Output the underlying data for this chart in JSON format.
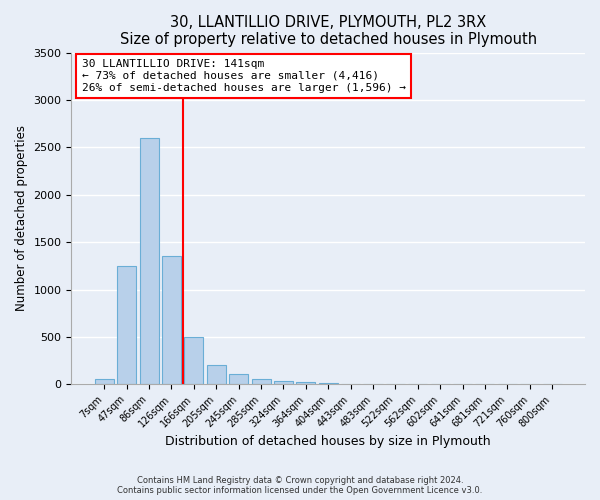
{
  "title": "30, LLANTILLIO DRIVE, PLYMOUTH, PL2 3RX",
  "subtitle": "Size of property relative to detached houses in Plymouth",
  "xlabel": "Distribution of detached houses by size in Plymouth",
  "ylabel": "Number of detached properties",
  "bar_labels": [
    "7sqm",
    "47sqm",
    "86sqm",
    "126sqm",
    "166sqm",
    "205sqm",
    "245sqm",
    "285sqm",
    "324sqm",
    "364sqm",
    "404sqm",
    "443sqm",
    "483sqm",
    "522sqm",
    "562sqm",
    "602sqm",
    "641sqm",
    "681sqm",
    "721sqm",
    "760sqm",
    "800sqm"
  ],
  "bar_values": [
    50,
    1250,
    2600,
    1350,
    500,
    200,
    110,
    50,
    35,
    20,
    10,
    0,
    0,
    0,
    0,
    0,
    0,
    0,
    0,
    0,
    0
  ],
  "bar_color": "#b8d0ea",
  "bar_edge_color": "#6aaed6",
  "vline_color": "red",
  "annotation_title": "30 LLANTILLIO DRIVE: 141sqm",
  "annotation_line1": "← 73% of detached houses are smaller (4,416)",
  "annotation_line2": "26% of semi-detached houses are larger (1,596) →",
  "annotation_box_color": "white",
  "annotation_box_edge": "red",
  "ylim": [
    0,
    3500
  ],
  "yticks": [
    0,
    500,
    1000,
    1500,
    2000,
    2500,
    3000,
    3500
  ],
  "footer1": "Contains HM Land Registry data © Crown copyright and database right 2024.",
  "footer2": "Contains public sector information licensed under the Open Government Licence v3.0.",
  "background_color": "#e8eef7",
  "grid_color": "white",
  "title_fontsize": 11,
  "subtitle_fontsize": 10
}
